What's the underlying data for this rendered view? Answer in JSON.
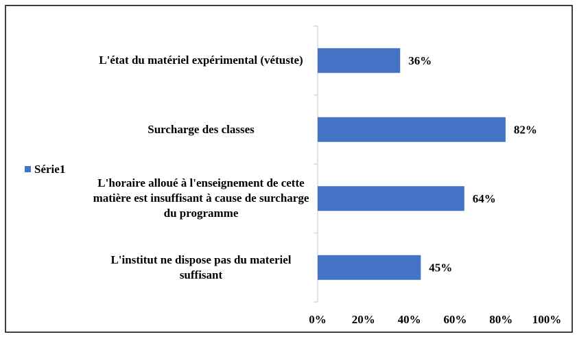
{
  "chart_data": {
    "type": "bar",
    "orientation": "horizontal",
    "categories": [
      "L'état du matériel expérimental (vétuste)",
      "Surcharge des classes",
      "L'horaire alloué à l'enseignement de cette matière est insuffisant à cause de surcharge du programme",
      "L'institut ne dispose pas du materiel suffisant"
    ],
    "series": [
      {
        "name": "Série1",
        "color": "#4472c4",
        "values": [
          36,
          82,
          64,
          45
        ],
        "value_labels": [
          "36%",
          "82%",
          "64%",
          "45%"
        ]
      }
    ],
    "xlim": [
      0,
      100
    ],
    "xticks": [
      {
        "value": 0,
        "label": "0%"
      },
      {
        "value": 20,
        "label": "20%"
      },
      {
        "value": 40,
        "label": "40%"
      },
      {
        "value": 60,
        "label": "60%"
      },
      {
        "value": 80,
        "label": "80%"
      },
      {
        "value": 100,
        "label": "100%"
      }
    ],
    "legend": "left",
    "grid": false
  }
}
